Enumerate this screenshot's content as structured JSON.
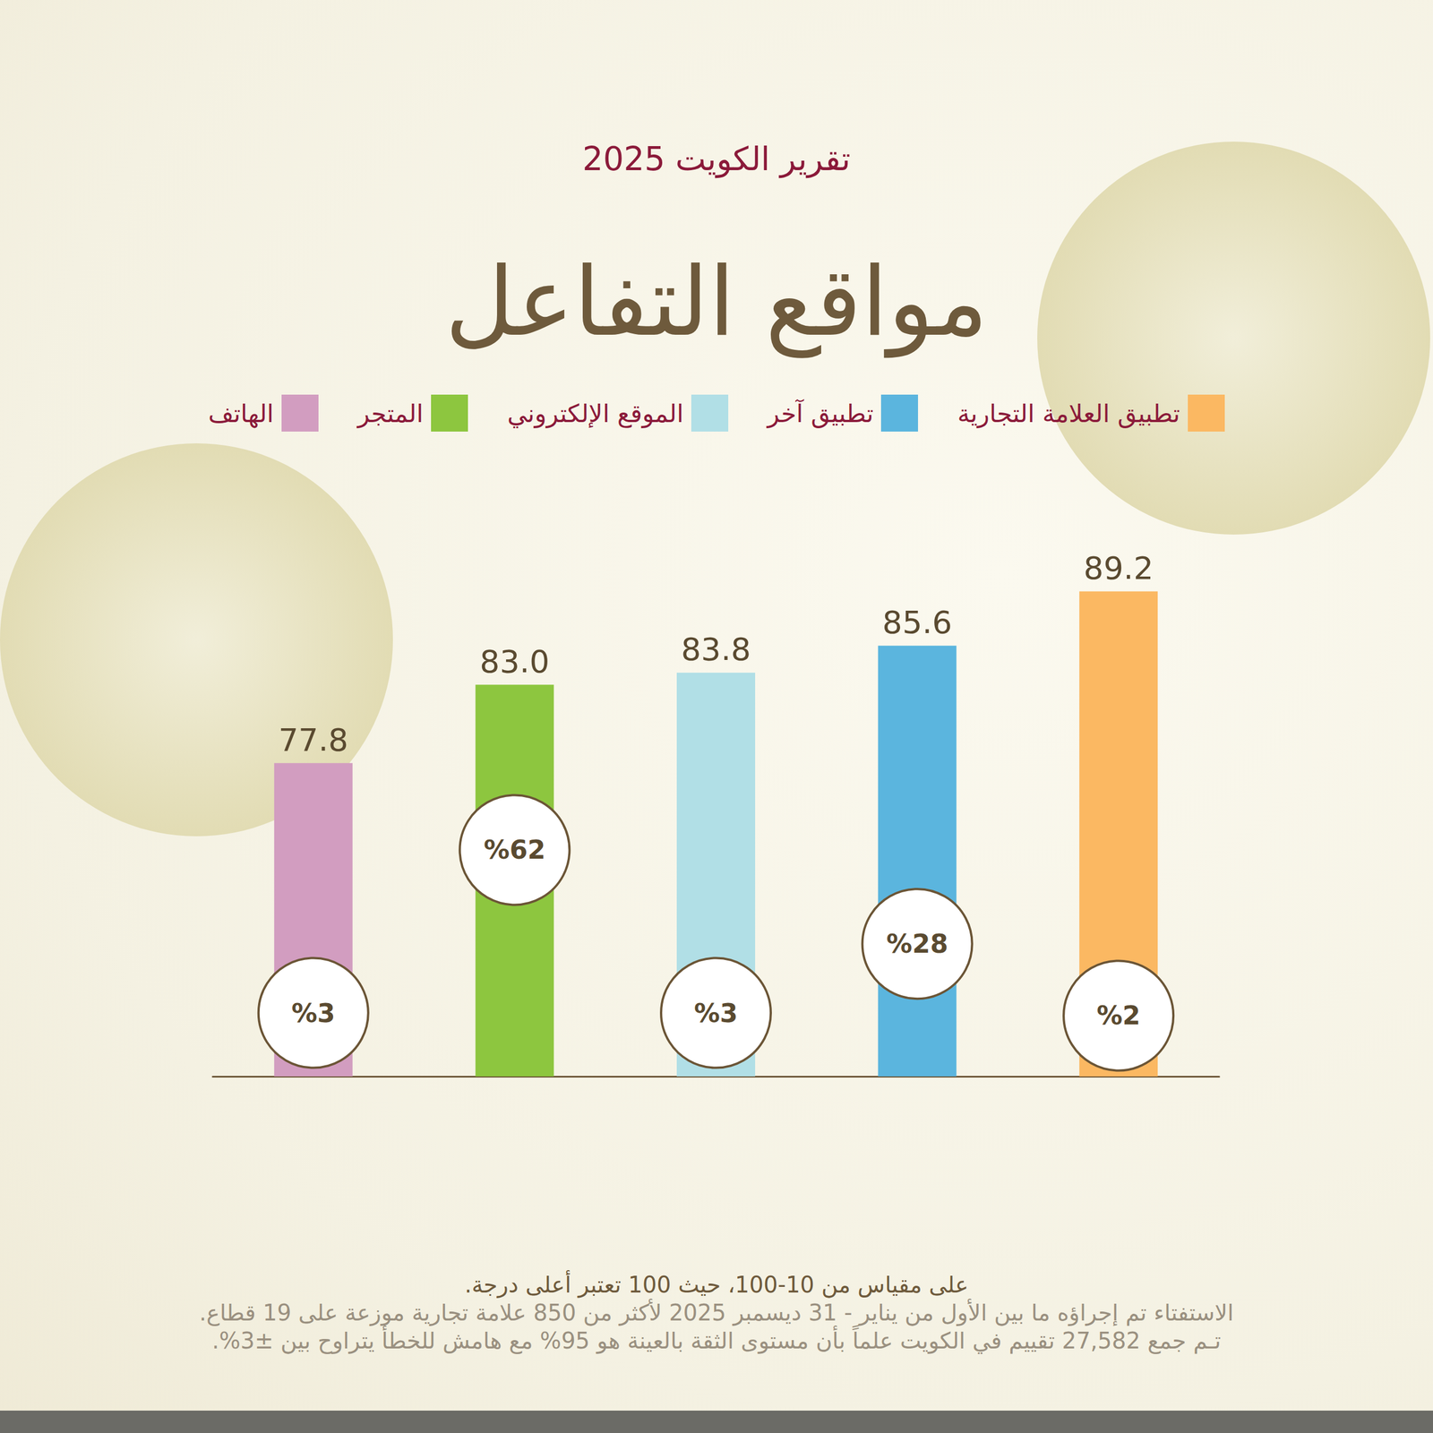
{
  "chart_data": {
    "type": "bar",
    "title": "مواقع التفاعل",
    "subtitle": "تقرير الكويت 2025",
    "categories": [
      "تطبيق العلامة التجارية",
      "تطبيق آخر",
      "الموقع الإلكتروني",
      "المتجر",
      "الهاتف"
    ],
    "legend": "top",
    "tick_labels": false,
    "grid": false,
    "ylim": [
      57,
      90
    ],
    "y2lim": [
      -20,
      160
    ],
    "series": [
      {
        "type": "bar",
        "values": [
          89.2,
          85.6,
          83.8,
          83.0,
          77.8
        ],
        "value_labels": [
          "89.2",
          "85.6",
          "83.8",
          "83.0",
          "77.8"
        ],
        "colors": [
          "#fbb862",
          "#5bb5de",
          "#b1dfe6",
          "#8dc63f",
          "#d29dc0"
        ],
        "data_labels": true
      },
      {
        "type": "scatter",
        "axis": "y2",
        "marker": "circle",
        "values": [
          2,
          28,
          3,
          62,
          3
        ],
        "value_labels": [
          "%2",
          "%28",
          "%3",
          "%62",
          "%3"
        ],
        "data_labels": true
      }
    ],
    "notes": [
      "على مقياس من 10-100، حيث 100 تعتبر أعلى درجة.",
      "الاستفتاء تم إجراؤه ما بين الأول من يناير - 31 ديسمبر 2025 لأكثر من 850 علامة تجارية موزعة على 19 قطاع.",
      "تـم جمع 27,582 تقييم في الكويت علماً بأن مستوى الثقة بالعينة هو 95% مع هامش للخطأ يتراوح بين ±3%."
    ]
  }
}
